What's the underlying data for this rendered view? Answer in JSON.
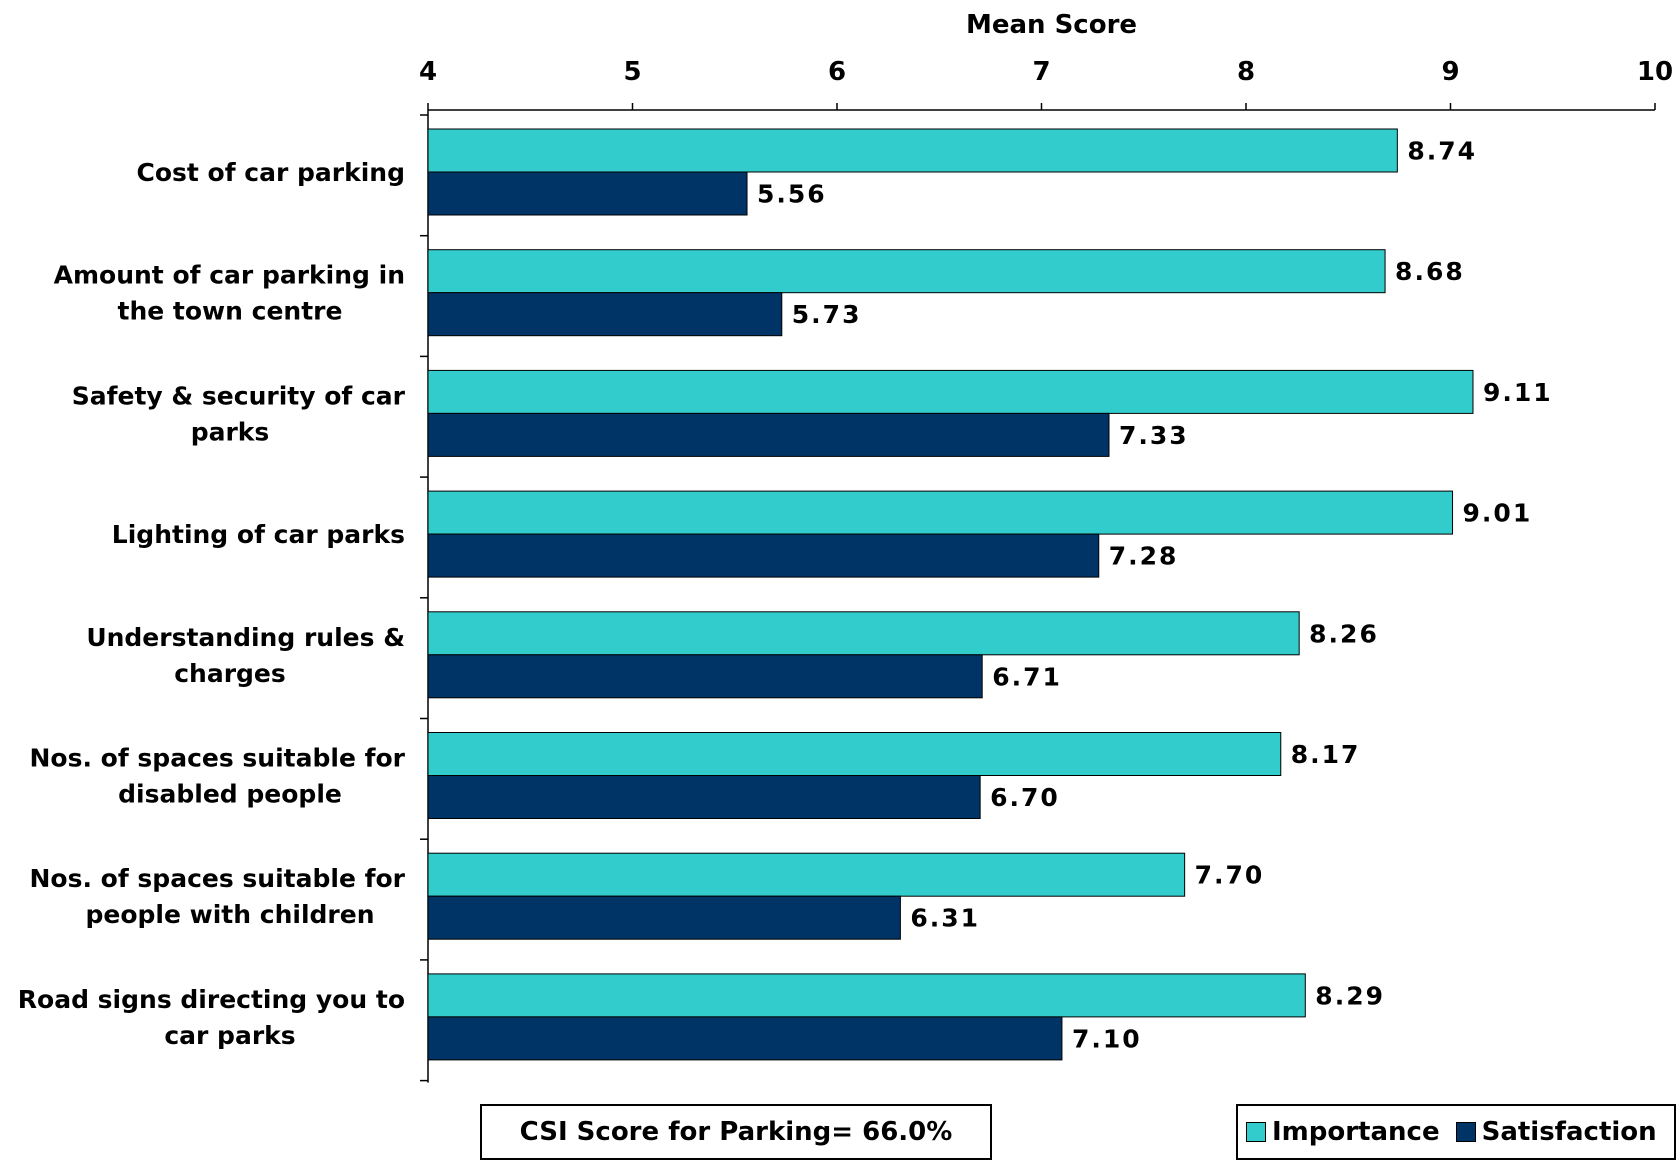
{
  "chart_data": {
    "type": "bar",
    "orientation": "horizontal",
    "title": "",
    "xlabel": "Mean Score",
    "ylabel": "",
    "xlim": [
      4,
      10
    ],
    "xticks": [
      "4",
      "5",
      "6",
      "7",
      "8",
      "9",
      "10"
    ],
    "categories": [
      "Cost of car parking",
      "Amount of car parking in the town centre",
      "Safety & security of car parks",
      "Lighting of car parks",
      "Understanding rules & charges",
      "Nos. of spaces suitable for disabled people",
      "Nos. of spaces suitable for people with children",
      "Road signs directing you to car parks"
    ],
    "category_lines": [
      [
        "Cost of car parking"
      ],
      [
        "Amount of car parking in",
        "the town centre"
      ],
      [
        "Safety & security of car",
        "parks"
      ],
      [
        "Lighting of car parks"
      ],
      [
        "Understanding rules &",
        "charges"
      ],
      [
        "Nos. of spaces suitable for",
        "disabled people"
      ],
      [
        "Nos. of spaces suitable for",
        "people with children"
      ],
      [
        "Road signs directing you to",
        "car parks"
      ]
    ],
    "series": [
      {
        "name": "Importance",
        "color": "#33CCCC",
        "values": [
          8.74,
          8.68,
          9.11,
          9.01,
          8.26,
          8.17,
          7.7,
          8.29
        ],
        "labels": [
          "8.74",
          "8.68",
          "9.11",
          "9.01",
          "8.26",
          "8.17",
          "7.70",
          "8.29"
        ]
      },
      {
        "name": "Satisfaction",
        "color": "#003366",
        "values": [
          5.56,
          5.73,
          7.33,
          7.28,
          6.71,
          6.7,
          6.31,
          7.1
        ],
        "labels": [
          "5.56",
          "5.73",
          "7.33",
          "7.28",
          "6.71",
          "6.70",
          "6.31",
          "7.10"
        ]
      }
    ],
    "legend_position": "bottom-right",
    "grid": false
  },
  "annotation": {
    "csi_text": "CSI Score for Parking= 66.0%"
  },
  "legend": {
    "importance_label": "Importance",
    "satisfaction_label": "Satisfaction"
  }
}
